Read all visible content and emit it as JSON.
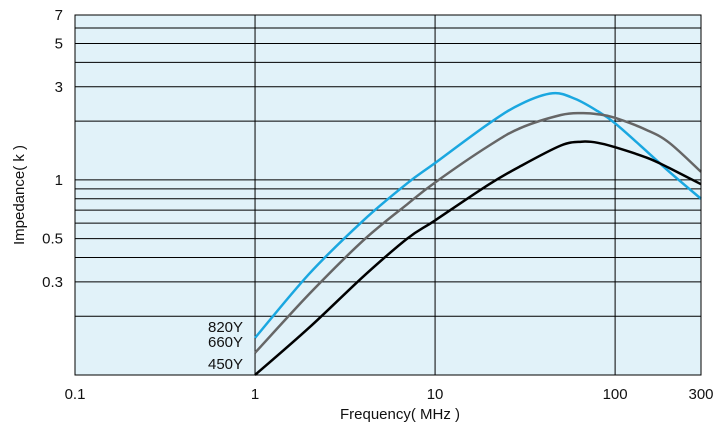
{
  "chart_data": {
    "type": "line",
    "xlabel": "Frequency( MHz )",
    "ylabel": "Impedance( k    )",
    "x_scale": "log",
    "y_scale": "log",
    "xlim": [
      0.1,
      300
    ],
    "ylim": [
      0.1,
      7
    ],
    "x_ticks": [
      0.1,
      1,
      10,
      100,
      300
    ],
    "x_tick_labels": [
      "0.1",
      "1",
      "10",
      "100",
      "300"
    ],
    "y_ticks": [
      7,
      5,
      3,
      1,
      0.5,
      0.3
    ],
    "y_tick_labels": [
      "7",
      "5",
      "3",
      "1",
      "0.5",
      "0.3"
    ],
    "y_gridlines": [
      0.2,
      0.3,
      0.4,
      0.5,
      0.6,
      0.7,
      0.8,
      0.9,
      1,
      2,
      3,
      4,
      5,
      6,
      7
    ],
    "x_gridlines": [
      1,
      10,
      100
    ],
    "grid": true,
    "series": [
      {
        "name": "820Y",
        "color": "#1aa7e0",
        "x": [
          1,
          2,
          4,
          7,
          10,
          20,
          30,
          45,
          60,
          80,
          100,
          150,
          200,
          300
        ],
        "y": [
          0.155,
          0.33,
          0.62,
          0.96,
          1.22,
          1.95,
          2.45,
          2.78,
          2.6,
          2.25,
          1.95,
          1.4,
          1.1,
          0.8
        ]
      },
      {
        "name": "660Y",
        "color": "#666666",
        "x": [
          1,
          2,
          4,
          7,
          10,
          20,
          30,
          50,
          65,
          80,
          100,
          150,
          200,
          300
        ],
        "y": [
          0.13,
          0.26,
          0.49,
          0.75,
          0.97,
          1.5,
          1.85,
          2.15,
          2.2,
          2.17,
          2.08,
          1.8,
          1.55,
          1.1
        ]
      },
      {
        "name": "450Y",
        "color": "#000000",
        "x": [
          1,
          2,
          4,
          7,
          10,
          20,
          30,
          50,
          65,
          80,
          100,
          150,
          200,
          300
        ],
        "y": [
          0.1,
          0.175,
          0.32,
          0.5,
          0.62,
          0.95,
          1.18,
          1.5,
          1.57,
          1.55,
          1.47,
          1.3,
          1.15,
          0.95
        ]
      }
    ]
  }
}
